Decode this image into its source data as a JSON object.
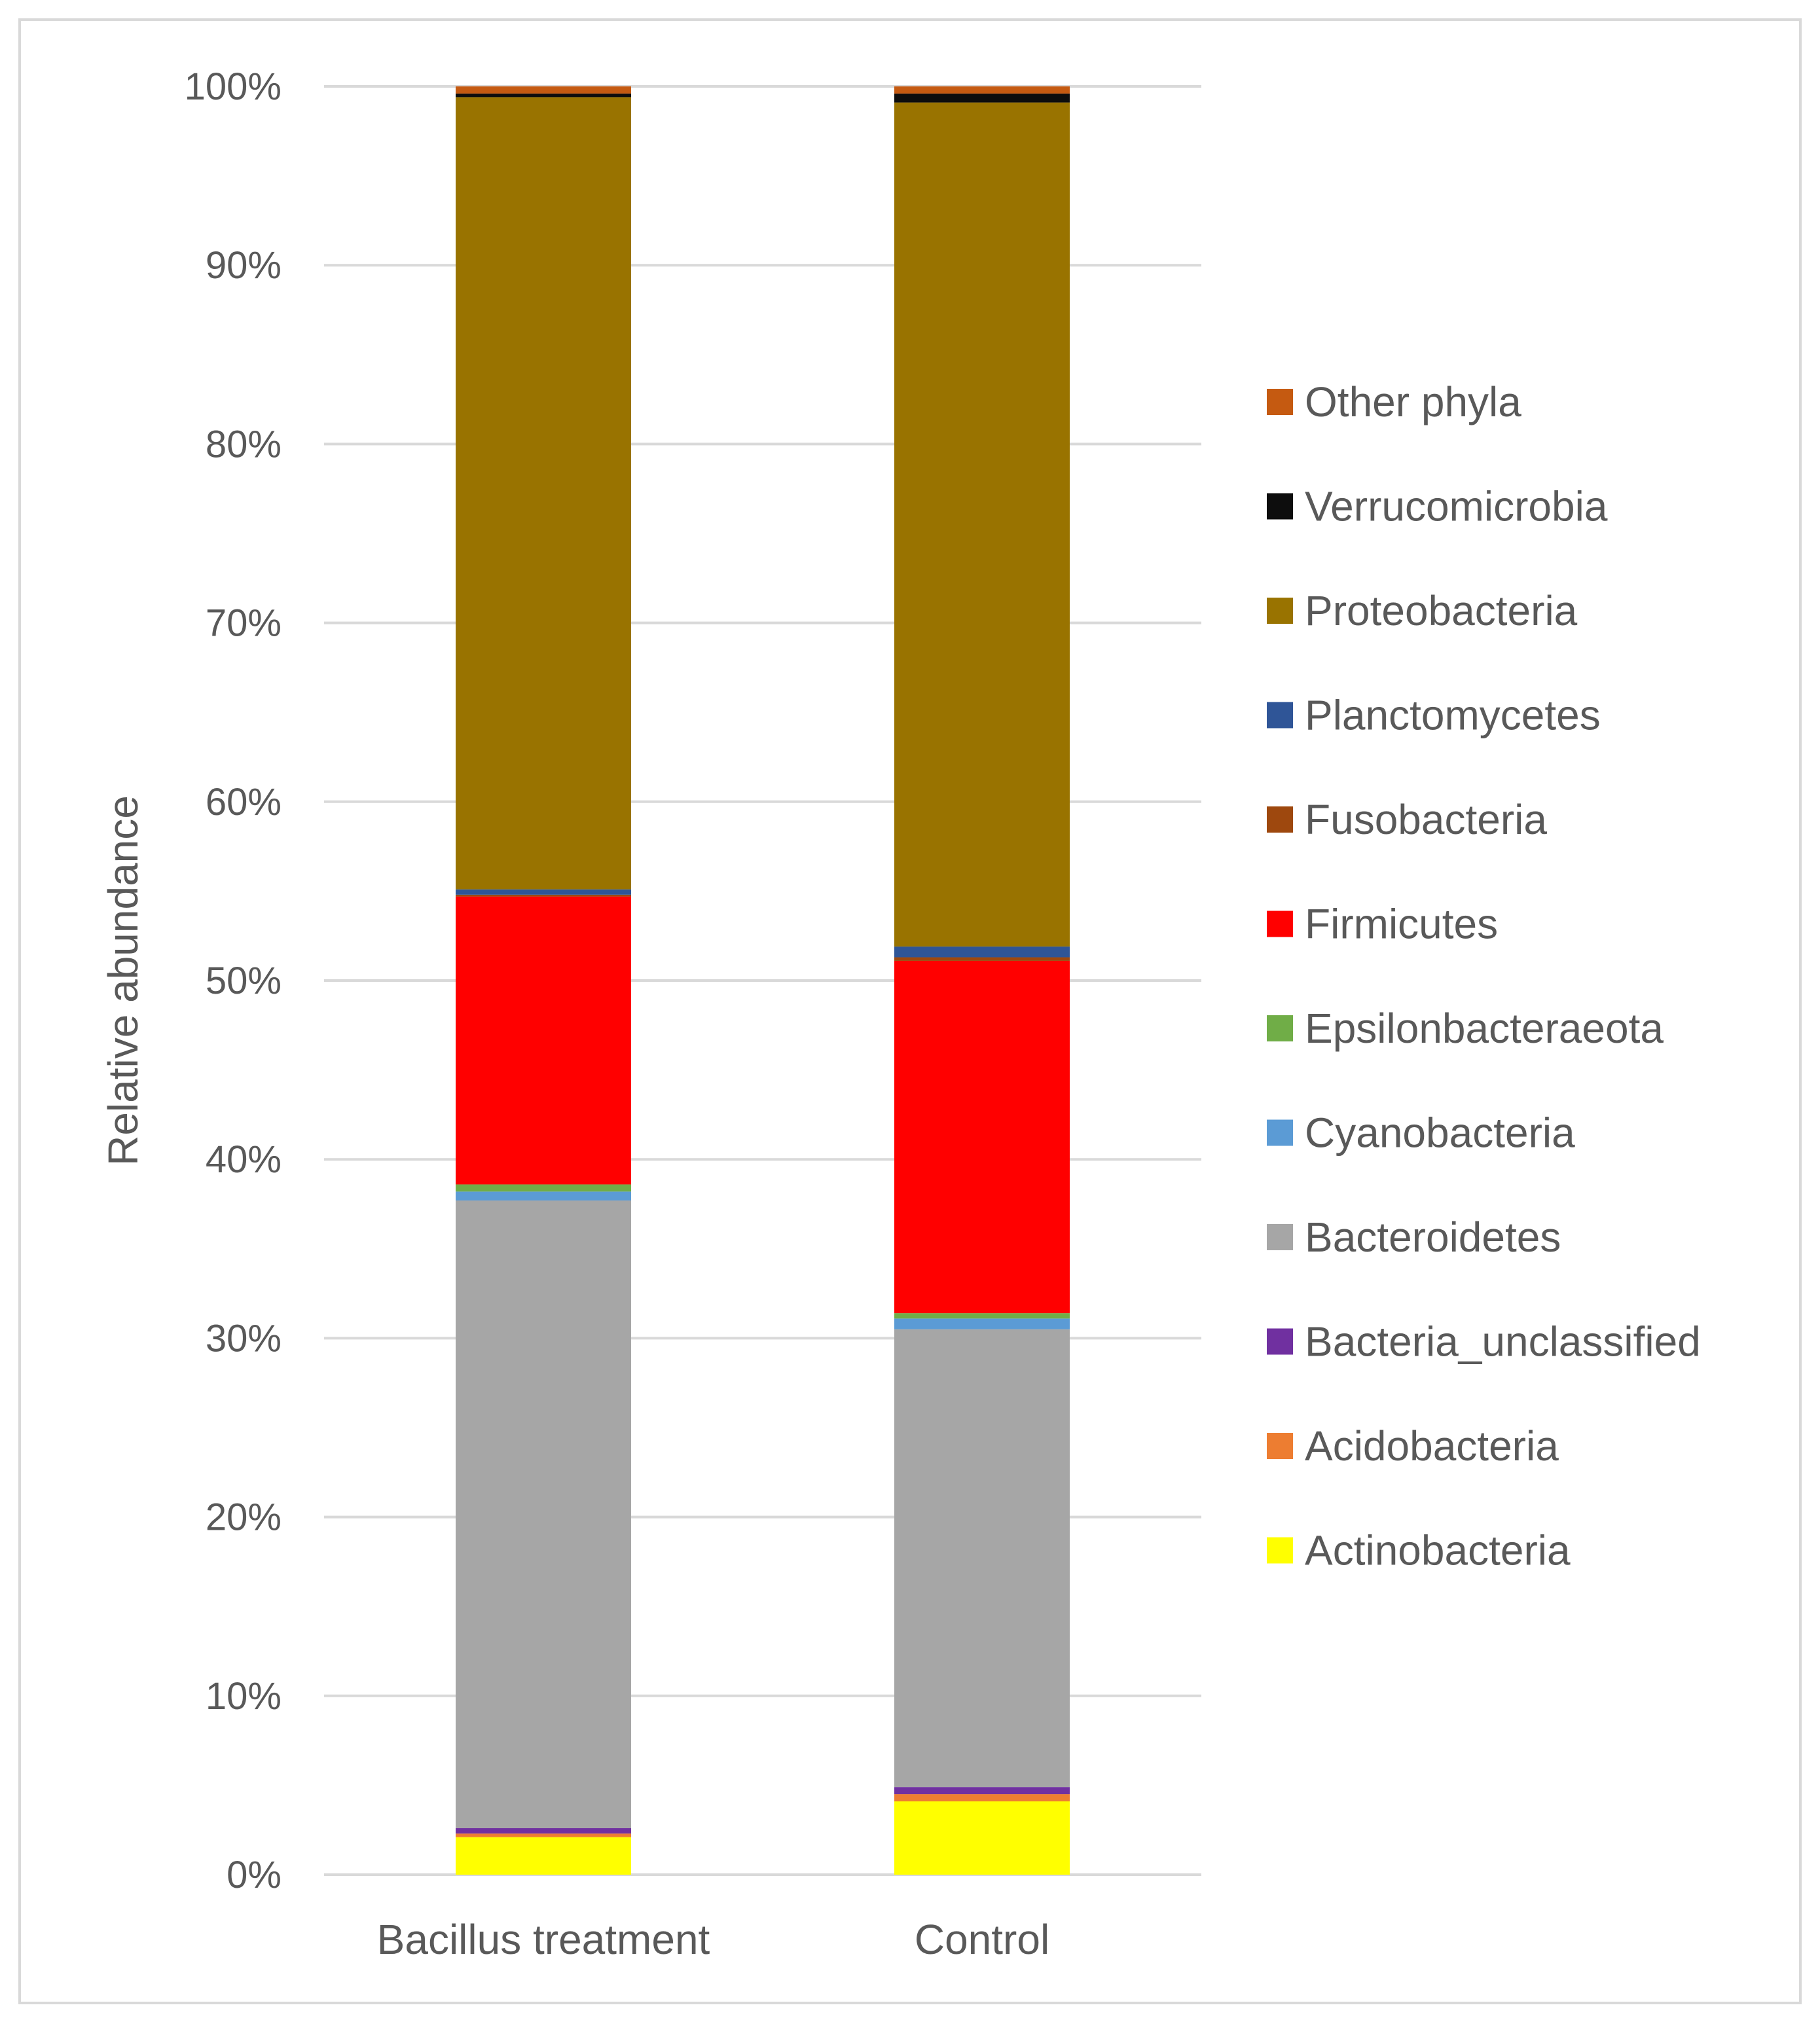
{
  "chart_data": {
    "type": "bar",
    "stacked": true,
    "title": "",
    "xlabel": "",
    "ylabel": "Relative abundance",
    "ylim": [
      0,
      100
    ],
    "y_ticks": [
      "0%",
      "10%",
      "20%",
      "30%",
      "40%",
      "50%",
      "60%",
      "70%",
      "80%",
      "90%",
      "100%"
    ],
    "grid": true,
    "legend_position": "right",
    "categories": [
      "Bacillus treatment",
      "Control"
    ],
    "series": [
      {
        "name": "Actinobacteria",
        "color": "#ffff00",
        "values": [
          2.1,
          4.1
        ]
      },
      {
        "name": "Acidobacteria",
        "color": "#ed7d31",
        "values": [
          0.2,
          0.4
        ]
      },
      {
        "name": "Bacteria_unclassified",
        "color": "#7030a0",
        "values": [
          0.3,
          0.4
        ]
      },
      {
        "name": "Bacteroidetes",
        "color": "#a6a6a6",
        "values": [
          35.1,
          25.6
        ]
      },
      {
        "name": "Cyanobacteria",
        "color": "#5b9bd5",
        "values": [
          0.5,
          0.6
        ]
      },
      {
        "name": "Epsilonbacteraeota",
        "color": "#70ad47",
        "values": [
          0.4,
          0.3
        ]
      },
      {
        "name": "Firmicutes",
        "color": "#ff0000",
        "values": [
          16.1,
          19.7
        ]
      },
      {
        "name": "Fusobacteria",
        "color": "#9e480e",
        "values": [
          0.1,
          0.2
        ]
      },
      {
        "name": "Planctomycetes",
        "color": "#2f5597",
        "values": [
          0.3,
          0.6
        ]
      },
      {
        "name": "Proteobacteria",
        "color": "#997300",
        "values": [
          44.3,
          47.2
        ]
      },
      {
        "name": "Verrucomicrobia",
        "color": "#0d0d0d",
        "values": [
          0.2,
          0.5
        ]
      },
      {
        "name": "Other phyla",
        "color": "#c55a11",
        "values": [
          0.4,
          0.4
        ]
      }
    ]
  }
}
